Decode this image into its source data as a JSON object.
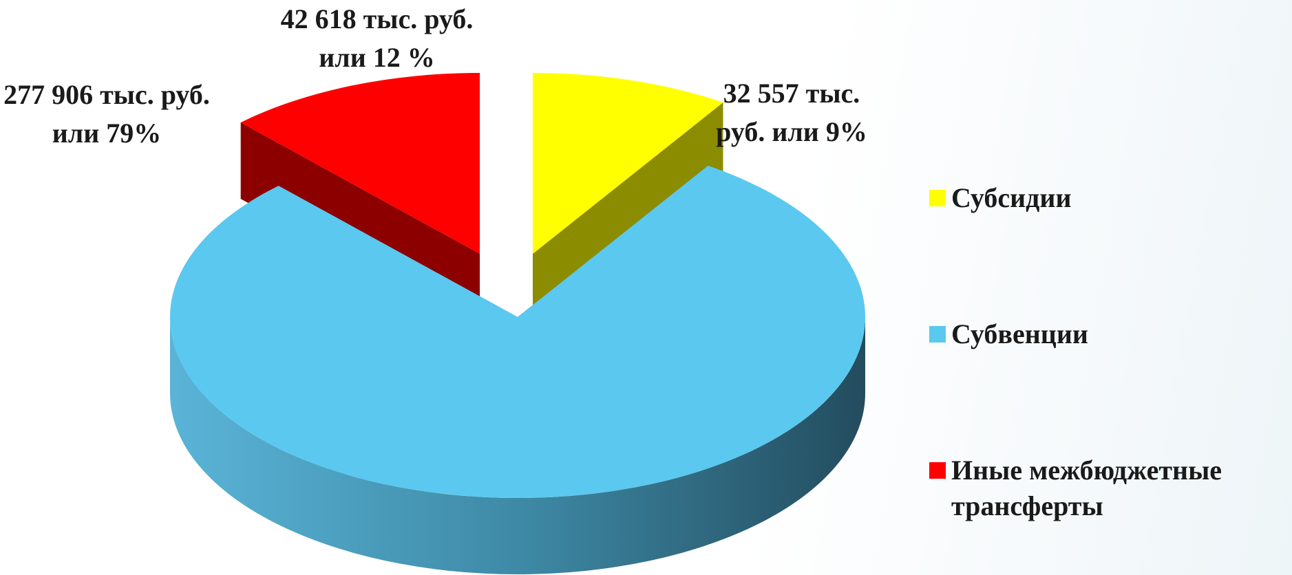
{
  "chart_data": {
    "type": "pie",
    "categories": [
      "Субсидии",
      "Субвенции",
      "Иные межбюджетные трансферты"
    ],
    "values": [
      32557,
      277906,
      42618
    ],
    "value_labels": [
      "32 557 тыс. руб. или 9%",
      "277 906 тыс. руб. или 79%",
      "42 618 тыс. руб. или 12 %"
    ],
    "colors": [
      "#ffff00",
      "#5bc8ef",
      "#ff0000"
    ],
    "legend": "right"
  }
}
